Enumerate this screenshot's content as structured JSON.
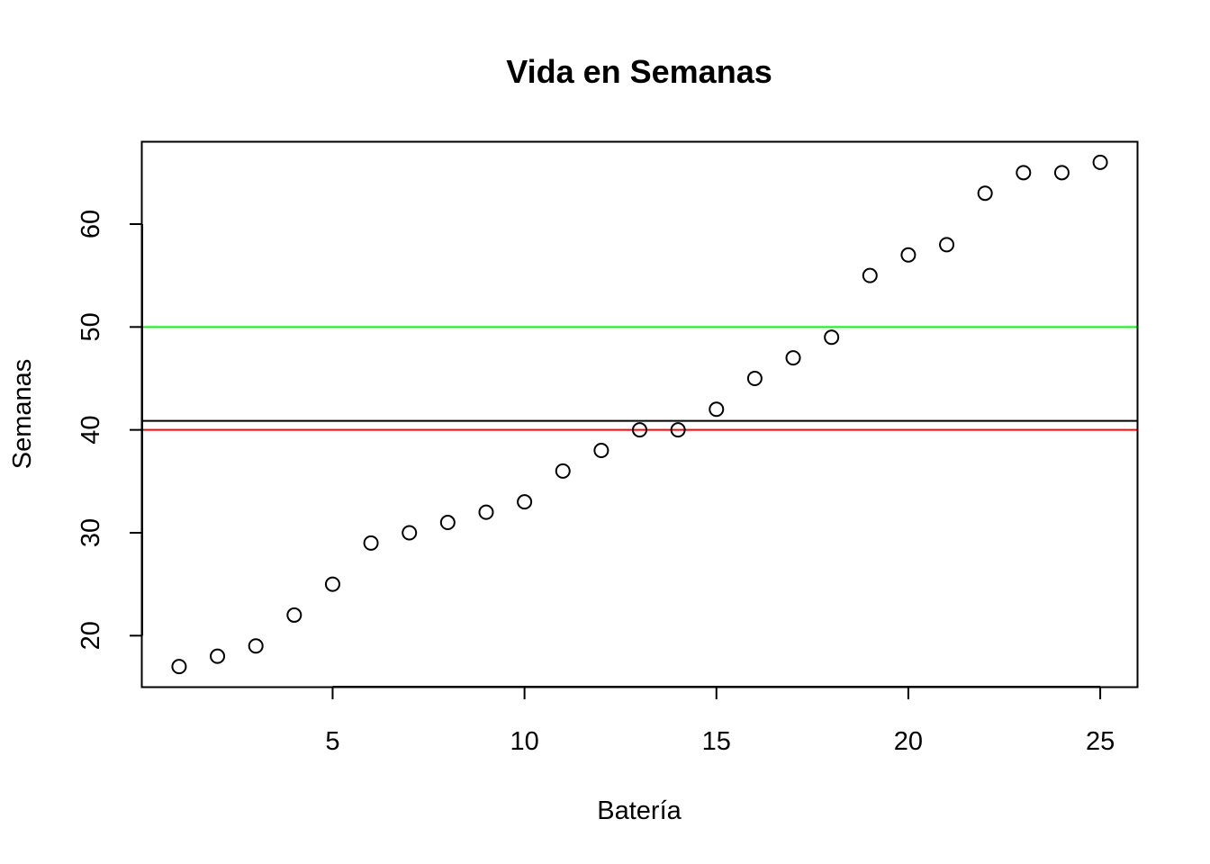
{
  "chart_data": {
    "type": "scatter",
    "title": "Vida en Semanas",
    "xlabel": "Batería",
    "ylabel": "Semanas",
    "xlim": [
      0.04,
      25.96
    ],
    "ylim": [
      15.04,
      67.96
    ],
    "x_ticks": [
      5,
      10,
      15,
      20,
      25
    ],
    "y_ticks": [
      20,
      30,
      40,
      50,
      60
    ],
    "x_tick_labels": [
      "5",
      "10",
      "15",
      "20",
      "25"
    ],
    "y_tick_labels": [
      "20",
      "30",
      "40",
      "50",
      "60"
    ],
    "grid": false,
    "legend": false,
    "point_style": "open-circle",
    "series": [
      {
        "x": [
          1,
          2,
          3,
          4,
          5,
          6,
          7,
          8,
          9,
          10,
          11,
          12,
          13,
          14,
          15,
          16,
          17,
          18,
          19,
          20,
          21,
          22,
          23,
          24,
          25
        ],
        "y": [
          17,
          18,
          19,
          22,
          25,
          29,
          30,
          31,
          32,
          33,
          36,
          38,
          40,
          40,
          42,
          45,
          47,
          49,
          55,
          57,
          58,
          63,
          65,
          65,
          66
        ],
        "color": "#000000"
      }
    ],
    "reference_lines": [
      {
        "orientation": "horizontal",
        "y": 50,
        "color": "#00ff00"
      },
      {
        "orientation": "horizontal",
        "y": 40.88,
        "color": "#000000"
      },
      {
        "orientation": "horizontal",
        "y": 40,
        "color": "#ff0000"
      }
    ]
  }
}
